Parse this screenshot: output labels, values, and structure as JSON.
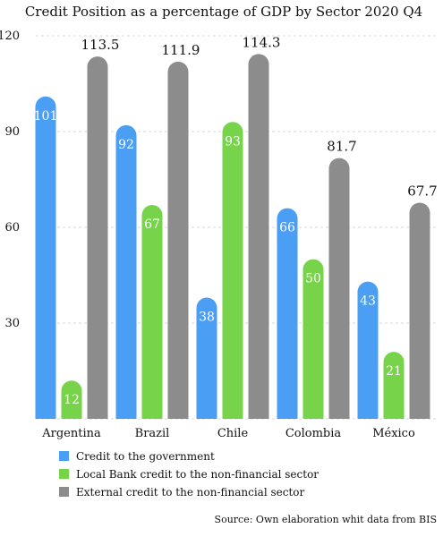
{
  "chart_data": {
    "type": "bar",
    "title": "Credit Position as a percentage of GDP by Sector 2020 Q4",
    "categories": [
      "Argentina",
      "Brazil",
      "Chile",
      "Colombia",
      "México"
    ],
    "series": [
      {
        "name": "Credit to the government",
        "color": "#4a9ff5",
        "values": [
          101,
          92,
          38,
          66,
          43
        ],
        "labels": [
          "101",
          "92",
          "38",
          "66",
          "43"
        ]
      },
      {
        "name": "Local Bank credit to the non-financial sector",
        "color": "#77d44a",
        "values": [
          12,
          67,
          93,
          50,
          21
        ],
        "labels": [
          "12",
          "67",
          "93",
          "50",
          "21"
        ]
      },
      {
        "name": "External credit to the non-financial sector",
        "color": "#8c8c8c",
        "values": [
          113.5,
          111.9,
          114.3,
          81.7,
          67.7
        ],
        "labels": [
          "113.5",
          "111.9",
          "114.3",
          "81.7",
          "67.7"
        ]
      }
    ],
    "yticks": [
      "30",
      "60",
      "90",
      "120"
    ],
    "ylim": [
      0,
      120
    ],
    "grid": true,
    "legend_position": "bottom-left",
    "source": "Source: Own elaboration whit data from BIS"
  }
}
